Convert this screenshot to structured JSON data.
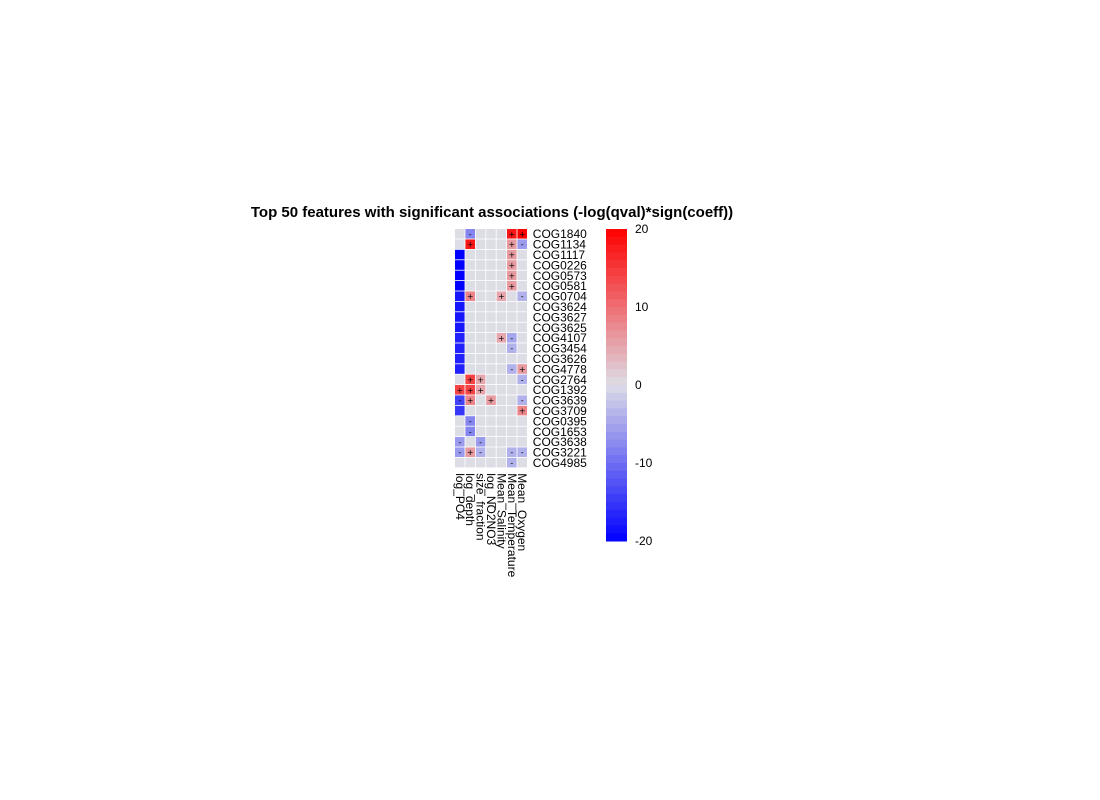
{
  "chart_data": {
    "type": "heatmap",
    "title": "Top 50 features with significant associations (-log(qval)*sign(coeff))",
    "columns": [
      "log_PO4",
      "log_depth",
      "size_fraction",
      "log_NO2NO3",
      "Mean_Salinity",
      "Mean_Temperature",
      "Mean_Oxygen"
    ],
    "rows": [
      "COG1840",
      "COG1134",
      "COG1117",
      "COG0226",
      "COG0573",
      "COG0581",
      "COG0704",
      "COG3624",
      "COG3627",
      "COG3625",
      "COG4107",
      "COG3454",
      "COG3626",
      "COG4778",
      "COG2764",
      "COG1392",
      "COG3639",
      "COG3709",
      "COG0395",
      "COG1653",
      "COG3638",
      "COG3221",
      "COG4985"
    ],
    "values": [
      [
        0,
        -8,
        0,
        0,
        0,
        18,
        20
      ],
      [
        0,
        18,
        0,
        0,
        0,
        6,
        -6
      ],
      [
        -20,
        0,
        0,
        0,
        0,
        6,
        0
      ],
      [
        -20,
        0,
        0,
        0,
        0,
        6,
        0
      ],
      [
        -20,
        0,
        0,
        0,
        0,
        6,
        0
      ],
      [
        -20,
        0,
        0,
        0,
        0,
        6,
        0
      ],
      [
        -18,
        8,
        0,
        0,
        5,
        0,
        -4
      ],
      [
        -18,
        0,
        0,
        0,
        0,
        0,
        0
      ],
      [
        -18,
        0,
        0,
        0,
        0,
        0,
        0
      ],
      [
        -18,
        0,
        0,
        0,
        0,
        0,
        0
      ],
      [
        -17,
        0,
        0,
        0,
        5,
        -5,
        0
      ],
      [
        -17,
        0,
        0,
        0,
        0,
        -4,
        0
      ],
      [
        -17,
        0,
        0,
        0,
        0,
        0,
        0
      ],
      [
        -17,
        0,
        0,
        0,
        0,
        -4,
        6
      ],
      [
        0,
        14,
        5,
        0,
        0,
        0,
        -4
      ],
      [
        14,
        14,
        5,
        0,
        0,
        0,
        0
      ],
      [
        -14,
        8,
        0,
        6,
        0,
        0,
        -4
      ],
      [
        -15,
        0,
        0,
        0,
        0,
        0,
        8
      ],
      [
        0,
        -8,
        0,
        0,
        0,
        0,
        0
      ],
      [
        0,
        -8,
        0,
        0,
        0,
        0,
        0
      ],
      [
        -6,
        0,
        -6,
        0,
        0,
        0,
        0
      ],
      [
        -6,
        6,
        -4,
        0,
        0,
        -4,
        -4
      ],
      [
        0,
        0,
        0,
        0,
        0,
        -4,
        0
      ]
    ],
    "signs": [
      [
        "",
        "-",
        "",
        "",
        "",
        "+",
        "+"
      ],
      [
        "",
        "+",
        "",
        "",
        "",
        "+",
        "-"
      ],
      [
        "",
        "",
        "",
        "",
        "",
        "+",
        ""
      ],
      [
        "",
        "",
        "",
        "",
        "",
        "+",
        ""
      ],
      [
        "",
        "",
        "",
        "",
        "",
        "+",
        ""
      ],
      [
        "",
        "",
        "",
        "",
        "",
        "+",
        ""
      ],
      [
        "",
        "+",
        "",
        "",
        "+",
        "",
        "-"
      ],
      [
        "",
        "",
        "",
        "",
        "",
        "",
        ""
      ],
      [
        "",
        "",
        "",
        "",
        "",
        "",
        ""
      ],
      [
        "",
        "",
        "",
        "",
        "",
        "",
        ""
      ],
      [
        "",
        "",
        "",
        "",
        "+",
        "-",
        ""
      ],
      [
        "",
        "",
        "",
        "",
        "",
        "-",
        ""
      ],
      [
        "",
        "",
        "",
        "",
        "",
        "",
        ""
      ],
      [
        "",
        "",
        "",
        "",
        "",
        "-",
        "+"
      ],
      [
        "",
        "+",
        "+",
        "",
        "",
        "",
        "-"
      ],
      [
        "+",
        "+",
        "+",
        "",
        "",
        "",
        ""
      ],
      [
        "-",
        "+",
        "",
        "+",
        "",
        "",
        "-"
      ],
      [
        "",
        "",
        "",
        "",
        "",
        "",
        "+"
      ],
      [
        "",
        "-",
        "",
        "",
        "",
        "",
        ""
      ],
      [
        "",
        "-",
        "",
        "",
        "",
        "",
        ""
      ],
      [
        "-",
        "",
        "-",
        "",
        "",
        "",
        ""
      ],
      [
        "-",
        "+",
        "-",
        "",
        "",
        "-",
        "-"
      ],
      [
        "",
        "",
        "",
        "",
        "",
        "-",
        ""
      ]
    ],
    "zlim": [
      -20,
      20
    ],
    "colorbar_ticks": [
      20,
      10,
      0,
      -10,
      -20
    ],
    "colors": {
      "low": "#0000ff",
      "mid": "#dddde6",
      "high": "#ff0000"
    },
    "legend_position": "right"
  }
}
